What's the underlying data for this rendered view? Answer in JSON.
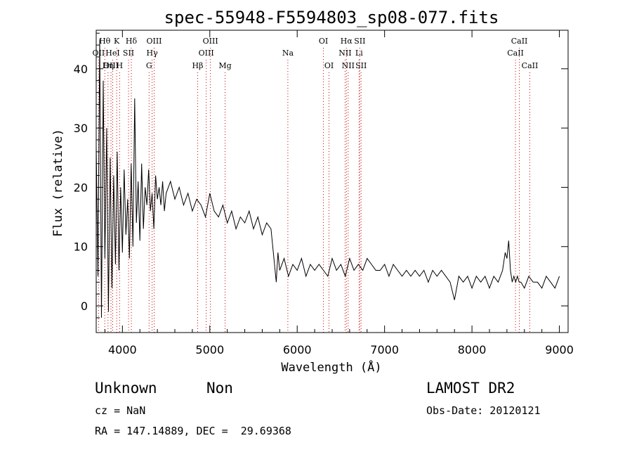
{
  "chart_data": {
    "type": "line",
    "title": "spec-55948-F5594803_sp08-077.fits",
    "xlabel": "Wavelength (Å)",
    "ylabel": "Flux (relative)",
    "xlim": [
      3700,
      9100
    ],
    "ylim": [
      -4.5,
      46.5
    ],
    "xticks": [
      4000,
      5000,
      6000,
      7000,
      8000,
      9000
    ],
    "yticks": [
      0,
      10,
      20,
      30,
      40
    ],
    "grid": false,
    "series": [
      {
        "x": [
          3700,
          3720,
          3740,
          3760,
          3780,
          3800,
          3820,
          3840,
          3860,
          3880,
          3900,
          3920,
          3940,
          3960,
          3980,
          4000,
          4020,
          4040,
          4060,
          4080,
          4100,
          4120,
          4140,
          4160,
          4180,
          4200,
          4220,
          4240,
          4260,
          4280,
          4300,
          4320,
          4340,
          4360,
          4380,
          4400,
          4420,
          4440,
          4460,
          4480,
          4500,
          4550,
          4600,
          4650,
          4700,
          4750,
          4800,
          4850,
          4900,
          4950,
          5000,
          5050,
          5100,
          5150,
          5200,
          5250,
          5300,
          5350,
          5400,
          5450,
          5500,
          5550,
          5600,
          5650,
          5700,
          5720,
          5740,
          5760,
          5780,
          5800,
          5850,
          5900,
          5950,
          6000,
          6050,
          6100,
          6150,
          6200,
          6250,
          6300,
          6350,
          6400,
          6450,
          6500,
          6550,
          6600,
          6650,
          6700,
          6750,
          6800,
          6850,
          6900,
          6950,
          7000,
          7050,
          7100,
          7150,
          7200,
          7250,
          7300,
          7350,
          7400,
          7450,
          7500,
          7550,
          7600,
          7650,
          7700,
          7750,
          7800,
          7850,
          7900,
          7950,
          8000,
          8050,
          8100,
          8150,
          8200,
          8250,
          8300,
          8350,
          8380,
          8400,
          8420,
          8440,
          8460,
          8480,
          8500,
          8520,
          8540,
          8560,
          8600,
          8650,
          8700,
          8750,
          8800,
          8850,
          8900,
          8950,
          9000
        ],
        "y": [
          27,
          5,
          45,
          -2,
          38,
          8,
          30,
          -1,
          25,
          3,
          22,
          7,
          26,
          6,
          20,
          9,
          23,
          12,
          18,
          8,
          24,
          10,
          35,
          14,
          21,
          11,
          24,
          13,
          20,
          17,
          23,
          16,
          19,
          13,
          22,
          18,
          20,
          17,
          21,
          16,
          19,
          21,
          18,
          20,
          17,
          19,
          16,
          18,
          17,
          15,
          19,
          16,
          15,
          17,
          14,
          16,
          13,
          15,
          14,
          16,
          13,
          15,
          12,
          14,
          13,
          10,
          7,
          4,
          9,
          6,
          8,
          5,
          7,
          6,
          8,
          5,
          7,
          6,
          7,
          6,
          5,
          8,
          6,
          7,
          5,
          8,
          6,
          7,
          6,
          8,
          7,
          6,
          6,
          7,
          5,
          7,
          6,
          5,
          6,
          5,
          6,
          5,
          6,
          4,
          6,
          5,
          6,
          5,
          4,
          1,
          5,
          4,
          5,
          3,
          5,
          4,
          5,
          3,
          5,
          4,
          6,
          9,
          8,
          11,
          6,
          4,
          5,
          4,
          5,
          4,
          4,
          3,
          5,
          4,
          4,
          3,
          5,
          4,
          3,
          5
        ]
      }
    ],
    "spectral_lines": [
      {
        "label": "Hθ",
        "x": 3798,
        "row": 0
      },
      {
        "label": "K",
        "x": 3934,
        "row": 0
      },
      {
        "label": "Hδ",
        "x": 4102,
        "row": 0
      },
      {
        "label": "OIII",
        "x": 4363,
        "row": 0
      },
      {
        "label": "OIII",
        "x": 5007,
        "row": 0
      },
      {
        "label": "OI",
        "x": 6300,
        "row": 0
      },
      {
        "label": "Hα",
        "x": 6563,
        "row": 0
      },
      {
        "label": "SII",
        "x": 6716,
        "row": 0
      },
      {
        "label": "CaII",
        "x": 8542,
        "row": 0
      },
      {
        "label": "OII",
        "x": 3727,
        "row": 1
      },
      {
        "label": "HeI",
        "x": 3889,
        "row": 1
      },
      {
        "label": "SII",
        "x": 4070,
        "row": 1
      },
      {
        "label": "Hγ",
        "x": 4340,
        "row": 1
      },
      {
        "label": "OIII",
        "x": 4959,
        "row": 1
      },
      {
        "label": "Na",
        "x": 5893,
        "row": 1
      },
      {
        "label": "NII",
        "x": 6548,
        "row": 1
      },
      {
        "label": "Li",
        "x": 6708,
        "row": 1
      },
      {
        "label": "CaII",
        "x": 8498,
        "row": 1
      },
      {
        "label": "OIII",
        "x": 3869,
        "row": 2
      },
      {
        "label": "Hη",
        "x": 3835,
        "row": 2
      },
      {
        "label": "H",
        "x": 3968,
        "row": 2
      },
      {
        "label": "G",
        "x": 4305,
        "row": 2
      },
      {
        "label": "Hβ",
        "x": 4861,
        "row": 2
      },
      {
        "label": "Mg",
        "x": 5175,
        "row": 2
      },
      {
        "label": "OI",
        "x": 6364,
        "row": 2
      },
      {
        "label": "NII",
        "x": 6583,
        "row": 2
      },
      {
        "label": "SII",
        "x": 6731,
        "row": 2
      },
      {
        "label": "CaII",
        "x": 8662,
        "row": 2
      }
    ]
  },
  "info": {
    "class": "Unknown",
    "subclass": "Non",
    "cz": "cz = NaN",
    "coords": "RA = 147.14889, DEC =  29.69368",
    "survey": "LAMOST DR2",
    "obs_date": "Obs-Date: 20120121"
  }
}
